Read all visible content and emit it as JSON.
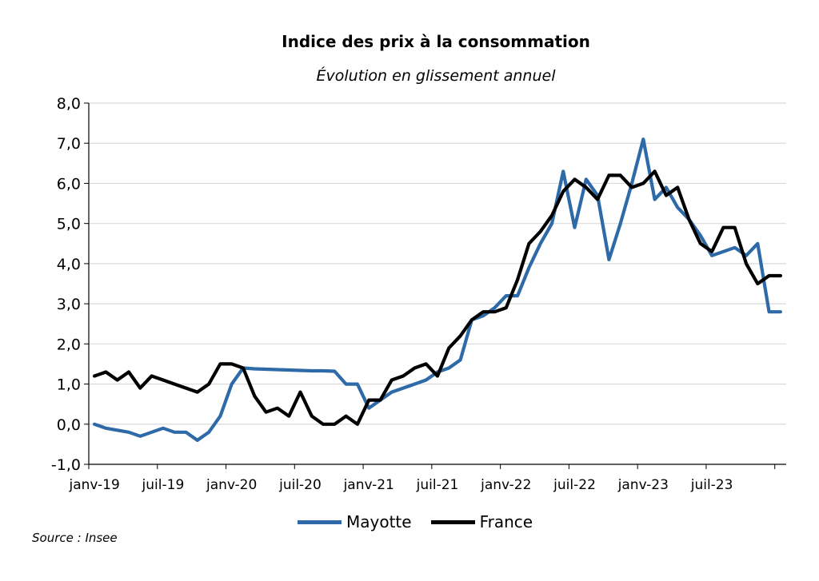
{
  "chart_data": {
    "type": "line",
    "title": "Indice des prix à la consommation",
    "subtitle": "Évolution en glissement annuel",
    "xlabel": "",
    "ylabel": "",
    "ylim": [
      -1,
      8
    ],
    "y_ticks": [
      "-1,0",
      "0,0",
      "1,0",
      "2,0",
      "3,0",
      "4,0",
      "5,0",
      "6,0",
      "7,0",
      "8,0"
    ],
    "x_tick_labels": [
      "janv-19",
      "juil-19",
      "janv-20",
      "juil-20",
      "janv-21",
      "juil-21",
      "janv-22",
      "juil-22",
      "janv-23",
      "juil-23"
    ],
    "grid": true,
    "legend_position": "bottom",
    "months": [
      "2019-01",
      "2019-02",
      "2019-03",
      "2019-04",
      "2019-05",
      "2019-06",
      "2019-07",
      "2019-08",
      "2019-09",
      "2019-10",
      "2019-11",
      "2019-12",
      "2020-01",
      "2020-02",
      "2020-03",
      "2020-04",
      "2020-05",
      "2020-06",
      "2020-07",
      "2020-08",
      "2020-09",
      "2020-10",
      "2020-11",
      "2020-12",
      "2021-01",
      "2021-02",
      "2021-03",
      "2021-04",
      "2021-05",
      "2021-06",
      "2021-07",
      "2021-08",
      "2021-09",
      "2021-10",
      "2021-11",
      "2021-12",
      "2022-01",
      "2022-02",
      "2022-03",
      "2022-04",
      "2022-05",
      "2022-06",
      "2022-07",
      "2022-08",
      "2022-09",
      "2022-10",
      "2022-11",
      "2022-12",
      "2023-01",
      "2023-02",
      "2023-03",
      "2023-04",
      "2023-05",
      "2023-06",
      "2023-07",
      "2023-08",
      "2023-09",
      "2023-10",
      "2023-11",
      "2023-12",
      "2024-01"
    ],
    "series": [
      {
        "name": "Mayotte",
        "color": "#2e6aa8",
        "values": [
          0.0,
          -0.1,
          -0.15,
          -0.2,
          -0.3,
          -0.2,
          -0.1,
          -0.2,
          -0.2,
          -0.4,
          -0.2,
          0.2,
          1.0,
          1.4,
          1.38,
          1.37,
          1.36,
          1.35,
          1.34,
          1.33,
          1.33,
          1.32,
          1.0,
          1.0,
          0.4,
          0.6,
          0.8,
          0.9,
          1.0,
          1.1,
          1.3,
          1.4,
          1.6,
          2.6,
          2.7,
          2.9,
          3.2,
          3.2,
          3.9,
          4.5,
          5.0,
          6.3,
          4.9,
          6.1,
          5.7,
          4.1,
          5.0,
          6.0,
          7.1,
          5.6,
          5.9,
          5.4,
          5.1,
          4.7,
          4.2,
          4.3,
          4.4,
          4.2,
          4.5,
          2.8,
          2.8
        ]
      },
      {
        "name": "France",
        "color": "#000000",
        "values": [
          1.2,
          1.3,
          1.1,
          1.3,
          0.9,
          1.2,
          1.1,
          1.0,
          0.9,
          0.8,
          1.0,
          1.5,
          1.5,
          1.4,
          0.7,
          0.3,
          0.4,
          0.2,
          0.8,
          0.2,
          0.0,
          0.0,
          0.2,
          0.0,
          0.6,
          0.6,
          1.1,
          1.2,
          1.4,
          1.5,
          1.2,
          1.9,
          2.2,
          2.6,
          2.8,
          2.8,
          2.9,
          3.6,
          4.5,
          4.8,
          5.2,
          5.8,
          6.1,
          5.9,
          5.6,
          6.2,
          6.2,
          5.9,
          6.0,
          6.3,
          5.7,
          5.9,
          5.1,
          4.5,
          4.3,
          4.9,
          4.9,
          4.0,
          3.5,
          3.7,
          3.7
        ]
      }
    ]
  },
  "source": "Source : Insee"
}
